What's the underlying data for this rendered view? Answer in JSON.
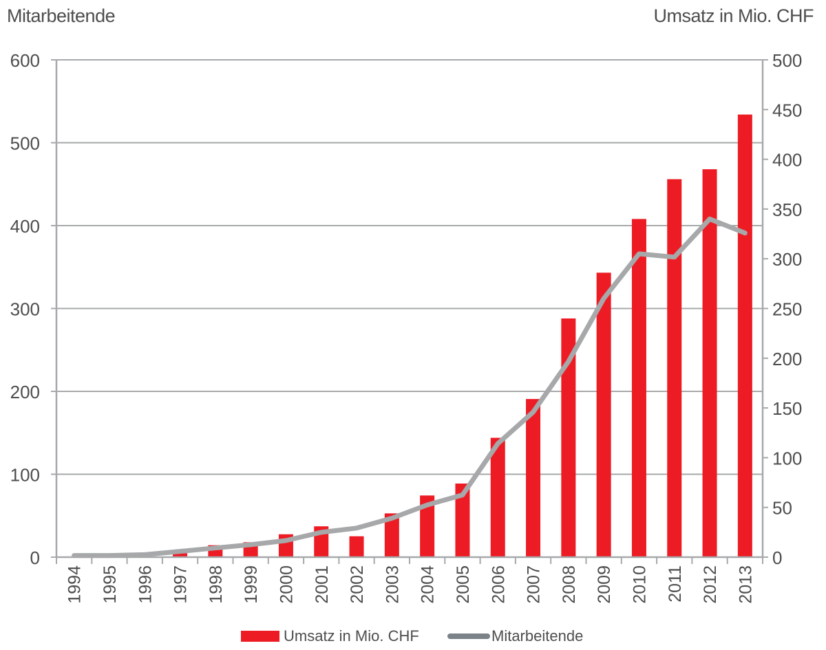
{
  "chart_data": {
    "type": "bar+line",
    "categories": [
      "1994",
      "1995",
      "1996",
      "1997",
      "1998",
      "1999",
      "2000",
      "2001",
      "2002",
      "2003",
      "2004",
      "2005",
      "2006",
      "2007",
      "2008",
      "2009",
      "2010",
      "2011",
      "2012",
      "2013"
    ],
    "series": [
      {
        "name": "Umsatz in Mio. CHF",
        "type": "bar",
        "axis": "right",
        "color": "#ed1c24",
        "values": [
          0.5,
          1,
          2,
          4,
          12,
          15,
          23,
          31,
          21,
          44,
          62,
          74,
          120,
          159,
          240,
          286,
          340,
          380,
          390,
          445
        ]
      },
      {
        "name": "Mitarbeitende",
        "type": "line",
        "axis": "left",
        "color": "#a6a8aa",
        "legend_color": "#7b8288",
        "values": [
          2,
          2,
          3,
          7,
          11,
          15,
          20,
          30,
          35,
          47,
          63,
          75,
          137,
          175,
          236,
          312,
          366,
          362,
          408,
          391
        ]
      }
    ],
    "left_axis": {
      "label": "Mitarbeitende",
      "min": 0,
      "max": 600,
      "ticks": [
        0,
        100,
        200,
        300,
        400,
        500,
        600
      ]
    },
    "right_axis": {
      "label": "Umsatz in Mio. CHF",
      "min": 0,
      "max": 500,
      "ticks": [
        0,
        50,
        100,
        150,
        200,
        250,
        300,
        350,
        400,
        450,
        500
      ]
    },
    "grid": true,
    "legend_position": "bottom"
  }
}
